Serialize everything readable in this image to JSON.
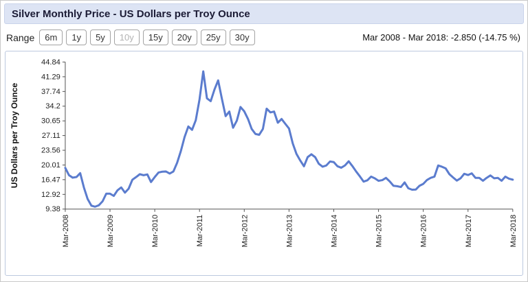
{
  "header": {
    "title": "Silver Monthly Price - US Dollars per Troy Ounce"
  },
  "toolbar": {
    "range_label": "Range",
    "buttons": [
      {
        "label": "6m",
        "active": false
      },
      {
        "label": "1y",
        "active": false
      },
      {
        "label": "5y",
        "active": false
      },
      {
        "label": "10y",
        "active": true
      },
      {
        "label": "15y",
        "active": false
      },
      {
        "label": "20y",
        "active": false
      },
      {
        "label": "25y",
        "active": false
      },
      {
        "label": "30y",
        "active": false
      }
    ],
    "summary": "Mar 2008 - Mar 2018: -2.850 (-14.75 %)"
  },
  "chart_data": {
    "type": "line",
    "title": "Silver Monthly Price - US Dollars per Troy Ounce",
    "xlabel": "",
    "ylabel": "US Dollars per Troy Ounce",
    "ylim": [
      9.38,
      44.84
    ],
    "y_ticks": [
      9.38,
      12.92,
      16.47,
      20.01,
      23.56,
      27.11,
      30.65,
      34.2,
      37.74,
      41.29,
      44.84
    ],
    "x_tick_labels": [
      "Mar-2008",
      "Mar-2009",
      "Mar-2010",
      "Mar-2011",
      "Mar-2012",
      "Mar-2013",
      "Mar-2014",
      "Mar-2015",
      "Mar-2016",
      "Mar-2017",
      "Mar-2018"
    ],
    "x_start": "Mar 2008",
    "x_end": "Mar 2018",
    "frequency": "monthly",
    "grid": false,
    "legend": "none",
    "line_color": "#5b7cce",
    "series": [
      {
        "name": "Silver Monthly Price (USD per Troy Ounce)",
        "values": [
          19.32,
          17.55,
          16.95,
          17.1,
          18.05,
          14.6,
          11.8,
          10.2,
          9.95,
          10.3,
          11.25,
          13.1,
          13.1,
          12.55,
          13.9,
          14.6,
          13.35,
          14.3,
          16.45,
          17.1,
          17.8,
          17.55,
          17.75,
          15.9,
          17.1,
          18.2,
          18.4,
          18.45,
          17.95,
          18.45,
          20.55,
          23.4,
          26.75,
          29.3,
          28.5,
          30.8,
          35.8,
          42.6,
          36.1,
          35.4,
          38.2,
          40.4,
          36.0,
          31.8,
          32.9,
          29.0,
          30.7,
          34.0,
          32.95,
          31.1,
          28.7,
          27.5,
          27.3,
          28.7,
          33.6,
          32.7,
          32.9,
          30.2,
          31.1,
          29.95,
          28.8,
          25.2,
          22.7,
          21.1,
          19.7,
          21.9,
          22.6,
          21.9,
          20.3,
          19.6,
          19.9,
          20.85,
          20.7,
          19.7,
          19.35,
          19.9,
          20.9,
          19.75,
          18.45,
          17.25,
          16.0,
          16.3,
          17.2,
          16.8,
          16.2,
          16.35,
          16.9,
          16.05,
          15.0,
          14.9,
          14.7,
          15.8,
          14.4,
          14.05,
          14.1,
          15.0,
          15.45,
          16.4,
          16.9,
          17.2,
          19.9,
          19.6,
          19.2,
          17.8,
          17.0,
          16.25,
          16.8,
          17.9,
          17.6,
          18.0,
          16.9,
          16.9,
          16.2,
          16.9,
          17.5,
          16.8,
          16.9,
          16.2,
          17.2,
          16.7,
          16.47
        ]
      }
    ]
  }
}
